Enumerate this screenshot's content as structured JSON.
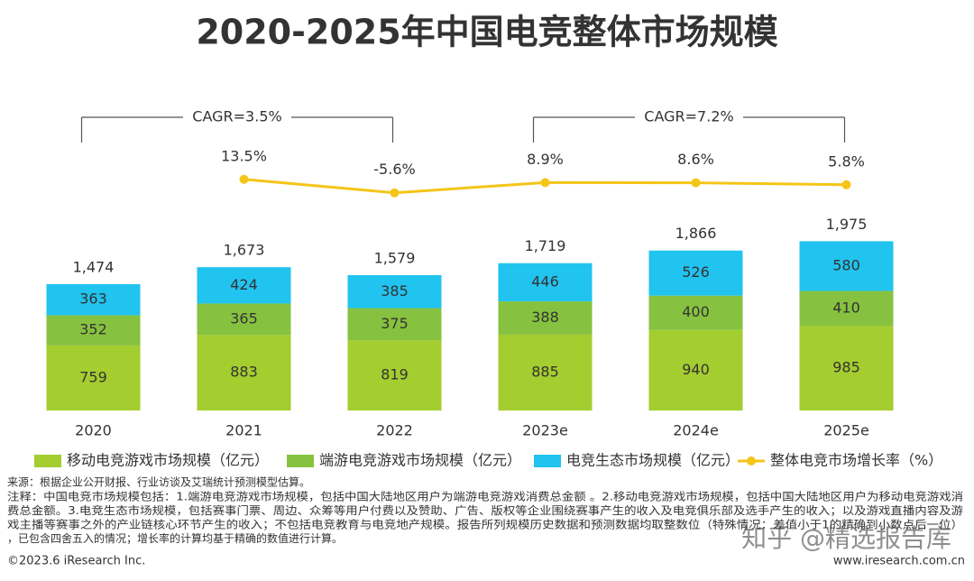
{
  "chart_data": {
    "type": "bar",
    "stacked": true,
    "title": "2020-2025年中国电竞整体市场规模",
    "categories": [
      "2020",
      "2021",
      "2022",
      "2023e",
      "2024e",
      "2025e"
    ],
    "series": [
      {
        "name": "移动电竞游戏市场规模（亿元）",
        "color": "#a4cd2f",
        "values": [
          759,
          883,
          819,
          885,
          940,
          985
        ]
      },
      {
        "name": "端游电竞游戏市场规模（亿元）",
        "color": "#86c23f",
        "values": [
          352,
          365,
          375,
          388,
          400,
          410
        ]
      },
      {
        "name": "电竞生态市场规模（亿元）",
        "color": "#21c3ef",
        "values": [
          363,
          424,
          385,
          446,
          526,
          580
        ]
      },
      {
        "name": "整体电竞市场增长率（%）",
        "type": "line",
        "axis": "y2",
        "color": "#f5c518",
        "values": [
          null,
          13.5,
          -5.6,
          8.9,
          8.6,
          5.8
        ],
        "value_labels": [
          null,
          "13.5%",
          "-5.6%",
          "8.9%",
          "8.6%",
          "5.8%"
        ]
      }
    ],
    "totals": [
      1474,
      1673,
      1579,
      1719,
      1866,
      1975
    ],
    "total_labels": [
      "1,474",
      "1,673",
      "1,579",
      "1,719",
      "1,866",
      "1,975"
    ],
    "ylim": [
      0,
      2000
    ],
    "y2lim": [
      -20,
      40
    ],
    "annotations": [
      {
        "text": "CAGR=3.5%",
        "from": 0,
        "to": 2
      },
      {
        "text": "CAGR=7.2%",
        "from": 3,
        "to": 5
      }
    ]
  },
  "footer": {
    "source": "来源：根据企业公开财报、行业访谈及艾瑞统计预测模型估算。",
    "notes": [
      "注释：中国电竞市场规模包括：1.端游电竞游戏市场规模，包括中国大陆地区用户为端游电竞游戏消费总金额 。2.移动电竞游戏市场规模，包括中国大陆地区用户为移动电竞游戏消",
      "费总金额。3.电竞生态市场规模，包括赛事门票、周边、众筹等用户付费以及赞助、广告、版权等企业围绕赛事产生的收入及电竞俱乐部及选手产生的收入；以及游戏直播内容及游",
      "戏主播等赛事之外的产业链核心环节产生的收入；不包括电竞教育与电竞地产规模。报告所列规模历史数据和预测数据均取整数位（特殊情况：差值小于1的精确到小数点后一位）",
      "，已包含四舍五入的情况；增长率的计算均基于精确的数值进行计算。"
    ],
    "copyright": "©2023.6 iResearch Inc.",
    "website": "www.iresearch.com.cn",
    "watermark": "知乎 @精选报告库"
  }
}
